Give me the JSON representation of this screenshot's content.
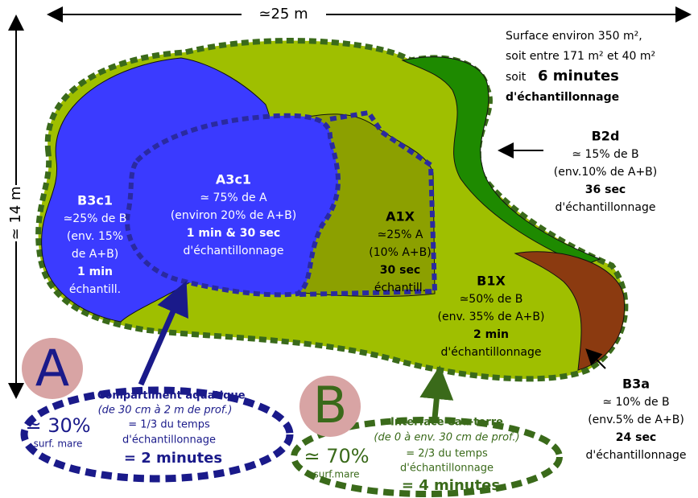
{
  "dimensions": {
    "width": "≃25 m",
    "height": "≃ 14 m"
  },
  "summary": {
    "line1": "Surface environ 350 m²,",
    "line2": "soit entre  171 m² et 40 m²",
    "prefix": "soit",
    "duration": "6 minutes",
    "line4": "d'échantillonnage"
  },
  "zones": [
    {
      "name": "B3c1",
      "lines": [
        "≃25% de B",
        "(env. 15%",
        "de A+B)",
        "1 min",
        "échantill."
      ]
    },
    {
      "name": "A3c1",
      "lines": [
        "≃ 75% de A",
        "(environ 20% de A+B)",
        "1 min & 30 sec",
        "d'échantillonnage"
      ]
    },
    {
      "name": "A1X",
      "lines": [
        "≃25% A",
        "(10% A+B)",
        "30 sec",
        "échantill."
      ]
    },
    {
      "name": "B1X",
      "lines": [
        "≃50% de B",
        "(env. 35% de A+B)",
        "2 min",
        "d'échantillonnage"
      ]
    },
    {
      "name": "B2d",
      "lines": [
        "≃ 15% de B",
        "(env.10% de A+B)",
        "36 sec",
        "d'échantillonnage"
      ]
    },
    {
      "name": "B3a",
      "lines": [
        "≃ 10% de B",
        "(env.5% de A+B)",
        "24 sec",
        "d'échantillonnage"
      ]
    }
  ],
  "compartments": [
    {
      "letter": "A",
      "title": "= Compartiment aquatique",
      "subtitle": "(de 30 cm à 2 m de prof.)",
      "share": "≃ 30%",
      "share_note": "surf. mare",
      "time_line1": "= 1/3 du temps",
      "time_line2": "d'échantillonnage",
      "total": "= 2 minutes"
    },
    {
      "letter": "B",
      "title": "Interface eau-terre",
      "subtitle": "(de 0 à env. 30 cm de prof.)",
      "share": "≃ 70%",
      "share_note": "surf.mare",
      "time_line1": "= 2/3 du temps",
      "time_line2": "d'échantillonnage",
      "total": "=  4 minutes"
    }
  ]
}
